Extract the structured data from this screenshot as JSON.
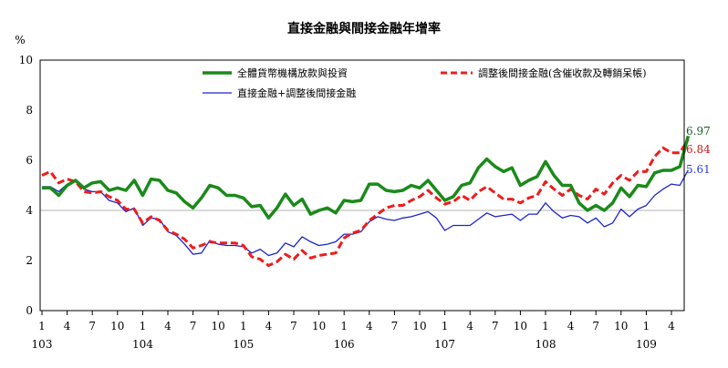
{
  "chart_data": {
    "type": "line",
    "title": "直接金融與間接金融年增率",
    "ylabel": "%",
    "xlabel": "",
    "ylim": [
      0,
      10
    ],
    "yticks": [
      "0",
      "2",
      "4",
      "6",
      "8",
      "10"
    ],
    "reference_line": 4,
    "x_tick_labels": [
      "1",
      "4",
      "7",
      "10",
      "1",
      "4",
      "7",
      "10",
      "1",
      "4",
      "7",
      "10",
      "1",
      "4",
      "7",
      "10",
      "1",
      "4",
      "7",
      "10",
      "1",
      "4",
      "7",
      "10",
      "1",
      "4"
    ],
    "year_labels": [
      "103",
      "104",
      "105",
      "106",
      "107",
      "108",
      "109"
    ],
    "start": "2014-01",
    "frequency": "monthly",
    "legend_placement": "top",
    "series": [
      {
        "name": "全體貨幣機構放款與投資",
        "color": "#1a8a1a",
        "style": "solid-thick",
        "end_label": "6.97",
        "end_label_color": "#1a5c2a",
        "values": [
          4.9,
          4.9,
          4.6,
          5.0,
          5.2,
          4.9,
          5.1,
          5.15,
          4.8,
          4.9,
          4.8,
          5.2,
          4.6,
          5.25,
          5.2,
          4.8,
          4.7,
          4.35,
          4.1,
          4.5,
          5.0,
          4.9,
          4.6,
          4.6,
          4.5,
          4.15,
          4.2,
          3.7,
          4.1,
          4.65,
          4.2,
          4.45,
          3.85,
          4.0,
          4.1,
          3.9,
          4.4,
          4.35,
          4.4,
          5.05,
          5.05,
          4.8,
          4.75,
          4.8,
          5.0,
          4.9,
          5.2,
          4.8,
          4.4,
          4.55,
          5.0,
          5.1,
          5.7,
          6.05,
          5.75,
          5.55,
          5.7,
          5.0,
          5.2,
          5.35,
          5.95,
          5.4,
          5.0,
          5.0,
          4.3,
          4.0,
          4.2,
          4.0,
          4.3,
          4.9,
          4.55,
          5.0,
          4.95,
          5.5,
          5.6,
          5.6,
          5.75,
          6.97
        ]
      },
      {
        "name": "調整後間接金融(含催收款及轉銷呆帳)",
        "color": "#ee1c1c",
        "style": "dashed-thick",
        "end_label": "6.84",
        "end_label_color": "#c81818",
        "values": [
          5.4,
          5.55,
          5.1,
          5.25,
          5.15,
          4.75,
          4.7,
          4.75,
          4.55,
          4.4,
          4.05,
          4.05,
          3.5,
          3.75,
          3.6,
          3.2,
          3.05,
          2.85,
          2.5,
          2.6,
          2.75,
          2.7,
          2.7,
          2.7,
          2.6,
          2.15,
          2.05,
          1.8,
          1.95,
          2.25,
          2.05,
          2.4,
          2.1,
          2.2,
          2.25,
          2.3,
          2.9,
          3.1,
          3.2,
          3.6,
          3.85,
          4.1,
          4.2,
          4.2,
          4.4,
          4.55,
          4.8,
          4.5,
          4.25,
          4.35,
          4.6,
          4.4,
          4.75,
          4.95,
          4.7,
          4.45,
          4.45,
          4.3,
          4.5,
          4.6,
          5.15,
          4.85,
          4.6,
          4.85,
          4.6,
          4.45,
          4.85,
          4.65,
          5.1,
          5.4,
          5.2,
          5.55,
          5.55,
          6.15,
          6.5,
          6.3,
          6.3,
          6.84
        ]
      },
      {
        "name": "直接金融+調整後間接金融",
        "color": "#1c24cc",
        "style": "solid-thin",
        "end_label": "5.61",
        "end_label_color": "#2a3adf",
        "values": [
          4.95,
          4.95,
          4.75,
          5.05,
          5.15,
          4.85,
          4.75,
          4.75,
          4.4,
          4.3,
          3.95,
          4.1,
          3.4,
          3.7,
          3.65,
          3.15,
          3.0,
          2.65,
          2.25,
          2.3,
          2.8,
          2.65,
          2.6,
          2.6,
          2.55,
          2.3,
          2.45,
          2.2,
          2.3,
          2.7,
          2.55,
          2.95,
          2.75,
          2.6,
          2.65,
          2.75,
          3.05,
          3.05,
          3.15,
          3.55,
          3.75,
          3.65,
          3.6,
          3.7,
          3.75,
          3.85,
          3.95,
          3.7,
          3.2,
          3.4,
          3.4,
          3.4,
          3.65,
          3.9,
          3.75,
          3.8,
          3.85,
          3.6,
          3.85,
          3.85,
          4.3,
          3.95,
          3.7,
          3.8,
          3.75,
          3.5,
          3.7,
          3.35,
          3.5,
          4.05,
          3.75,
          4.05,
          4.2,
          4.6,
          4.85,
          5.05,
          5.0,
          5.61
        ]
      }
    ]
  }
}
